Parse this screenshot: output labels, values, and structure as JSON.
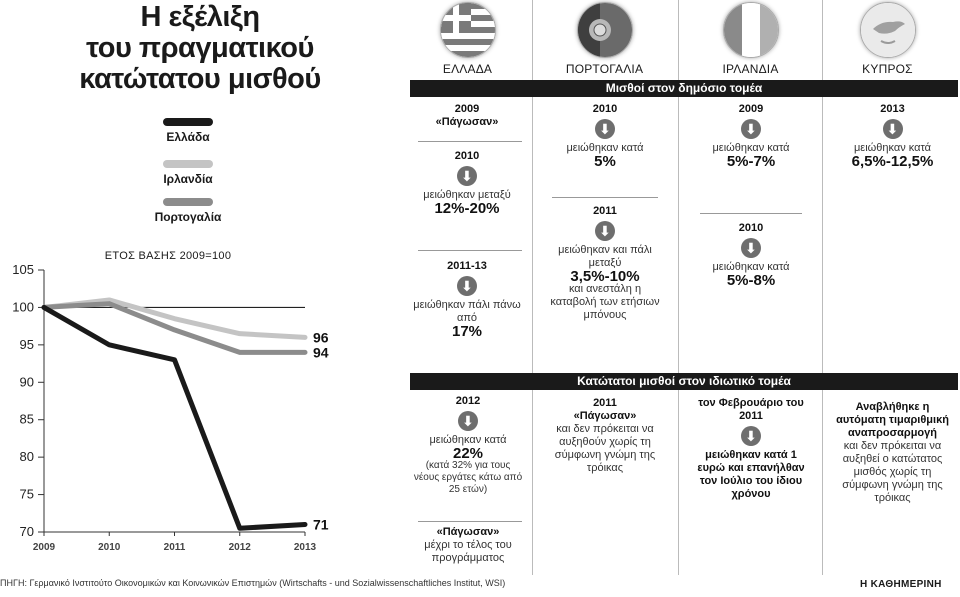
{
  "title": {
    "line1": "Η εξέλιξη",
    "line2": "του πραγματικού",
    "line3": "κατώτατου μισθού"
  },
  "legend": [
    {
      "label": "Ελλάδα",
      "color": "#1a1a1a"
    },
    {
      "label": "Ιρλανδία",
      "color": "#c4c4c4"
    },
    {
      "label": "Πορτογαλία",
      "color": "#8c8c8c"
    }
  ],
  "base_year_note": "ΕΤΟΣ ΒΑΣΗΣ 2009=100",
  "chart_data": {
    "type": "line",
    "title": "Η εξέλιξη του πραγματικού κατώτατου μισθού",
    "subtitle": "ΕΤΟΣ ΒΑΣΗΣ 2009=100",
    "x": [
      "2009",
      "2010",
      "2011",
      "2012",
      "2013"
    ],
    "ylim": [
      70,
      105
    ],
    "yticks": [
      70,
      75,
      80,
      85,
      90,
      95,
      100,
      105
    ],
    "baseline": 100,
    "series": [
      {
        "name": "Ελλάδα",
        "color": "#1a1a1a",
        "values": [
          100,
          95,
          93,
          70.5,
          71
        ],
        "end_label": "71"
      },
      {
        "name": "Ιρλανδία",
        "color": "#c4c4c4",
        "values": [
          100,
          101,
          98.5,
          96.5,
          96
        ],
        "end_label": "96"
      },
      {
        "name": "Πορτογαλία",
        "color": "#8c8c8c",
        "values": [
          100,
          100.5,
          97,
          94,
          94
        ],
        "end_label": "94"
      }
    ]
  },
  "countries": [
    {
      "name": "ΕΛΛΑΔΑ",
      "flag": "greece-flag"
    },
    {
      "name": "ΠΟΡΤΟΓΑΛΙΑ",
      "flag": "portugal-flag"
    },
    {
      "name": "ΙΡΛΑΝΔΙΑ",
      "flag": "ireland-flag"
    },
    {
      "name": "ΚΥΠΡΟΣ",
      "flag": "cyprus-flag"
    }
  ],
  "public_sector": {
    "header": "Μισθοί στον δημόσιο τομέα",
    "greece": {
      "freeze_year": "2009",
      "freeze_text": "«Πάγωσαν»",
      "cut1_year": "2010",
      "cut1_text": "μειώθηκαν μεταξύ",
      "cut1_value": "12%-20%",
      "cut2_year": "2011-13",
      "cut2_text": "μειώθηκαν πάλι πάνω από",
      "cut2_value": "17%"
    },
    "portugal": {
      "cut1_year": "2010",
      "cut1_text": "μειώθηκαν κατά",
      "cut1_value": "5%",
      "cut2_year": "2011",
      "cut2_text": "μειώθηκαν και πάλι μεταξύ",
      "cut2_value": "3,5%-10%",
      "cut2_note": "και ανεστάλη η καταβολή των ετήσιων μπόνους"
    },
    "ireland": {
      "cut1_year": "2009",
      "cut1_text": "μειώθηκαν κατά",
      "cut1_value": "5%-7%",
      "cut2_year": "2010",
      "cut2_text": "μειώθηκαν κατά",
      "cut2_value": "5%-8%"
    },
    "cyprus": {
      "cut1_year": "2013",
      "cut1_text": "μειώθηκαν κατά",
      "cut1_value": "6,5%-12,5%"
    }
  },
  "private_sector": {
    "header": "Κατώτατοι μισθοί στον ιδιωτικό τομέα",
    "greece": {
      "year": "2012",
      "text": "μειώθηκαν κατά",
      "value": "22%",
      "note": "(κατά 32% για τους νέους εργάτες κάτω από 25 ετών)",
      "freeze_title": "«Πάγωσαν»",
      "freeze_text": "μέχρι το τέλος του προγράμματος"
    },
    "portugal": {
      "year": "2011",
      "title": "«Πάγωσαν»",
      "text": "και δεν πρόκειται να αυξηθούν χωρίς τη σύμφωνη γνώμη της τρόικας"
    },
    "ireland": {
      "title": "τον Φεβρουάριο του 2011",
      "text": "μειώθηκαν κατά 1 ευρώ και επανήλθαν τον Ιούλιο του ίδιου χρόνου"
    },
    "cyprus": {
      "title": "Αναβλήθηκε η αυτόματη τιμαριθμική αναπροσαρμογή",
      "text": "και δεν πρόκειται να αυξηθεί ο κατώτατος μισθός χωρίς τη σύμφωνη γνώμη της τρόικας"
    }
  },
  "source": "ΠΗΓΗ: Γερμανικό Ινστιτούτο Οικονομικών και Κοινωνικών Επιστημών (Wirtschafts - und Sozialwissenschaftliches Institut, WSI)",
  "brand": "Η ΚΑΘΗΜΕΡΙΝΗ"
}
